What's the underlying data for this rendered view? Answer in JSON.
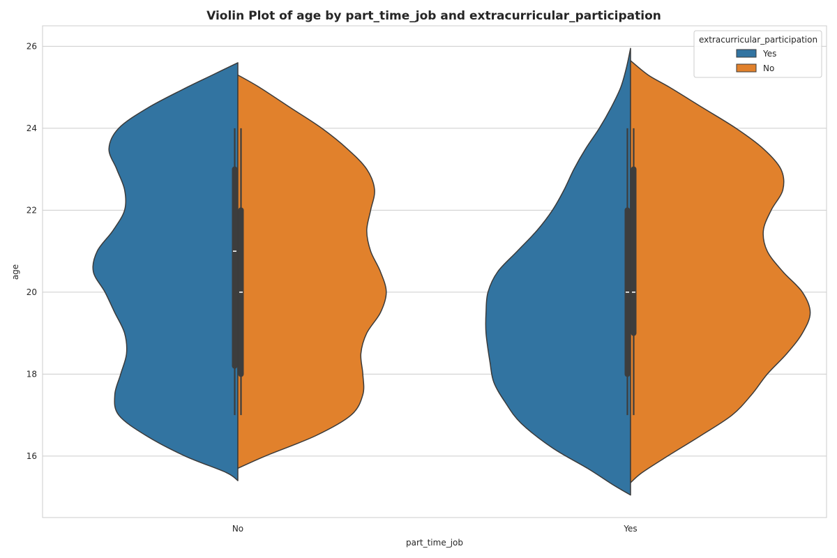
{
  "chart_data": {
    "type": "violin",
    "title": "Violin Plot of age by part_time_job and extracurricular_participation",
    "xlabel": "part_time_job",
    "ylabel": "age",
    "categories": [
      "No",
      "Yes"
    ],
    "ylim": [
      14.5,
      26.5
    ],
    "yticks": [
      16,
      18,
      20,
      22,
      24,
      26
    ],
    "grid": true,
    "legend": {
      "title": "extracurricular_participation",
      "placement": "top-right",
      "entries": [
        "Yes",
        "No"
      ]
    },
    "colors": {
      "Yes": "#3274a1",
      "No": "#e1812c",
      "outline": "#3a3a3a",
      "box": "#3d3d3d",
      "grid": "#cccccc",
      "text": "#262626"
    },
    "series": [
      {
        "name": "Yes",
        "side": "left",
        "violins": [
          {
            "category": "No",
            "y_min": 15.4,
            "y_max": 25.6,
            "profile": [
              [
                15.4,
                0.0
              ],
              [
                15.6,
                0.06
              ],
              [
                16.0,
                0.27
              ],
              [
                16.5,
                0.47
              ],
              [
                17.0,
                0.61
              ],
              [
                17.5,
                0.63
              ],
              [
                18.0,
                0.6
              ],
              [
                18.5,
                0.57
              ],
              [
                19.0,
                0.58
              ],
              [
                19.5,
                0.63
              ],
              [
                20.0,
                0.68
              ],
              [
                20.5,
                0.74
              ],
              [
                21.0,
                0.72
              ],
              [
                21.5,
                0.64
              ],
              [
                22.0,
                0.58
              ],
              [
                22.5,
                0.58
              ],
              [
                23.0,
                0.62
              ],
              [
                23.5,
                0.66
              ],
              [
                24.0,
                0.61
              ],
              [
                24.5,
                0.46
              ],
              [
                25.0,
                0.26
              ],
              [
                25.3,
                0.13
              ],
              [
                25.6,
                0.0
              ]
            ],
            "quartiles": [
              18.2,
              23.0
            ],
            "whiskers": [
              17.0,
              24.0
            ],
            "median": 21.0
          },
          {
            "category": "Yes",
            "y_min": 15.05,
            "y_max": 25.95,
            "profile": [
              [
                15.05,
                0.0
              ],
              [
                15.3,
                0.09
              ],
              [
                15.7,
                0.22
              ],
              [
                16.2,
                0.4
              ],
              [
                16.8,
                0.56
              ],
              [
                17.3,
                0.64
              ],
              [
                17.8,
                0.7
              ],
              [
                18.3,
                0.72
              ],
              [
                19.0,
                0.74
              ],
              [
                19.5,
                0.74
              ],
              [
                20.0,
                0.73
              ],
              [
                20.5,
                0.68
              ],
              [
                21.0,
                0.58
              ],
              [
                21.5,
                0.48
              ],
              [
                22.0,
                0.4
              ],
              [
                22.5,
                0.34
              ],
              [
                23.0,
                0.29
              ],
              [
                23.5,
                0.23
              ],
              [
                24.0,
                0.16
              ],
              [
                24.5,
                0.1
              ],
              [
                25.0,
                0.05
              ],
              [
                25.5,
                0.02
              ],
              [
                25.95,
                0.0
              ]
            ],
            "quartiles": [
              18.0,
              22.0
            ],
            "whiskers": [
              17.0,
              24.0
            ],
            "median": 20.0
          }
        ]
      },
      {
        "name": "No",
        "side": "right",
        "violins": [
          {
            "category": "No",
            "y_min": 15.7,
            "y_max": 25.3,
            "profile": [
              [
                15.7,
                0.0
              ],
              [
                16.0,
                0.14
              ],
              [
                16.5,
                0.4
              ],
              [
                17.0,
                0.58
              ],
              [
                17.5,
                0.64
              ],
              [
                18.0,
                0.64
              ],
              [
                18.5,
                0.63
              ],
              [
                19.0,
                0.66
              ],
              [
                19.5,
                0.73
              ],
              [
                20.0,
                0.76
              ],
              [
                20.5,
                0.73
              ],
              [
                21.0,
                0.68
              ],
              [
                21.5,
                0.66
              ],
              [
                22.0,
                0.68
              ],
              [
                22.5,
                0.7
              ],
              [
                23.0,
                0.66
              ],
              [
                23.5,
                0.56
              ],
              [
                24.0,
                0.43
              ],
              [
                24.5,
                0.27
              ],
              [
                25.0,
                0.11
              ],
              [
                25.3,
                0.0
              ]
            ],
            "quartiles": [
              18.0,
              22.0
            ],
            "whiskers": [
              17.0,
              24.0
            ],
            "median": 20.0
          },
          {
            "category": "Yes",
            "y_min": 15.35,
            "y_max": 25.65,
            "profile": [
              [
                15.35,
                0.0
              ],
              [
                15.6,
                0.06
              ],
              [
                16.0,
                0.19
              ],
              [
                16.5,
                0.36
              ],
              [
                17.0,
                0.52
              ],
              [
                17.5,
                0.62
              ],
              [
                18.0,
                0.7
              ],
              [
                18.5,
                0.8
              ],
              [
                19.0,
                0.88
              ],
              [
                19.5,
                0.92
              ],
              [
                20.0,
                0.88
              ],
              [
                20.5,
                0.78
              ],
              [
                21.0,
                0.7
              ],
              [
                21.5,
                0.68
              ],
              [
                22.0,
                0.72
              ],
              [
                22.5,
                0.78
              ],
              [
                23.0,
                0.77
              ],
              [
                23.5,
                0.68
              ],
              [
                24.0,
                0.54
              ],
              [
                24.5,
                0.37
              ],
              [
                25.0,
                0.2
              ],
              [
                25.3,
                0.09
              ],
              [
                25.65,
                0.0
              ]
            ],
            "quartiles": [
              19.0,
              23.0
            ],
            "whiskers": [
              17.0,
              24.0
            ],
            "median": 20.0
          }
        ]
      }
    ]
  }
}
